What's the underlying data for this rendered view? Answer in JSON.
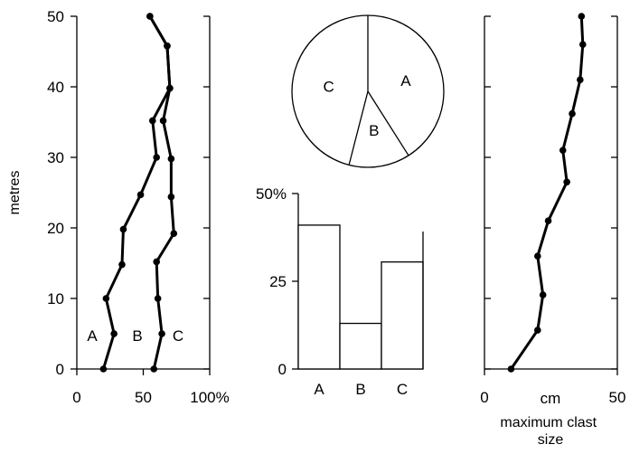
{
  "chart_data": [
    {
      "type": "line",
      "ylabel": "metres",
      "xlabel": "",
      "xlim": [
        0,
        100
      ],
      "ylim": [
        0,
        50
      ],
      "xticks": [
        "0",
        "50",
        "100%"
      ],
      "yticks": [
        "0",
        "10",
        "20",
        "30",
        "40",
        "50"
      ],
      "series": [
        {
          "name": "B",
          "points": [
            [
              20,
              0
            ],
            [
              28,
              5
            ],
            [
              22,
              10
            ],
            [
              34,
              14.8
            ],
            [
              35,
              19.8
            ],
            [
              48,
              24.7
            ],
            [
              60,
              30
            ],
            [
              57,
              35.2
            ],
            [
              70,
              39.8
            ],
            [
              68,
              45.8
            ],
            [
              55,
              50
            ]
          ]
        },
        {
          "name": "C",
          "points": [
            [
              58,
              0
            ],
            [
              64,
              5
            ],
            [
              61,
              10
            ],
            [
              60,
              15.2
            ],
            [
              73,
              19.2
            ],
            [
              71,
              24.4
            ],
            [
              71,
              29.8
            ],
            [
              65,
              35.2
            ],
            [
              70,
              39.8
            ],
            [
              68,
              45.8
            ],
            [
              55,
              50
            ]
          ]
        }
      ],
      "region_labels": [
        "A",
        "B",
        "C"
      ]
    },
    {
      "type": "pie",
      "labels": [
        "A",
        "B",
        "C"
      ],
      "values": [
        41,
        13,
        46
      ]
    },
    {
      "type": "bar",
      "categories": [
        "A",
        "B",
        "C"
      ],
      "values": [
        41,
        13,
        30.5
      ],
      "ylim": [
        0,
        50
      ],
      "yticks": [
        "0",
        "25",
        "50%"
      ]
    },
    {
      "type": "line",
      "xlabel": "maximum clast size",
      "unit_label": "cm",
      "xlim": [
        0,
        50
      ],
      "ylim": [
        0,
        50
      ],
      "xticks": [
        "0",
        "50"
      ],
      "points": [
        [
          10,
          0
        ],
        [
          20,
          5.5
        ],
        [
          22,
          10.5
        ],
        [
          20,
          16
        ],
        [
          24,
          21
        ],
        [
          31,
          26.5
        ],
        [
          29.5,
          31
        ],
        [
          33,
          36.2
        ],
        [
          36,
          41
        ],
        [
          37,
          46
        ],
        [
          36.5,
          50
        ]
      ]
    }
  ]
}
